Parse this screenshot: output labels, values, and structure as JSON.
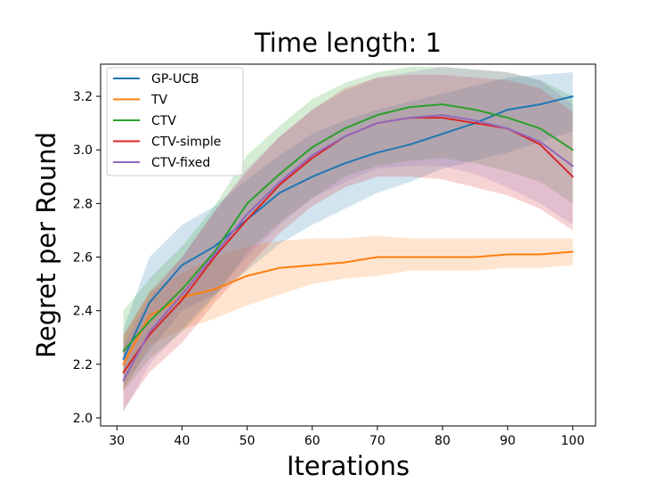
{
  "chart_data": {
    "type": "line",
    "title": "Time length: 1",
    "xlabel": "Iterations",
    "ylabel": "Regret per Round",
    "xlim": [
      27.5,
      103.5
    ],
    "ylim": [
      1.97,
      3.32
    ],
    "xticks": [
      30,
      40,
      50,
      60,
      70,
      80,
      90,
      100
    ],
    "yticks": [
      2.0,
      2.2,
      2.4,
      2.6,
      2.8,
      3.0,
      3.2
    ],
    "ytick_labels": [
      "2.0",
      "2.2",
      "2.4",
      "2.6",
      "2.8",
      "3.0",
      "3.2"
    ],
    "legend_position": "upper-left",
    "x": [
      31,
      35,
      40,
      45,
      50,
      55,
      60,
      65,
      70,
      75,
      80,
      85,
      90,
      95,
      100
    ],
    "series": [
      {
        "name": "GP-UCB",
        "color": "#1f77b4",
        "values": [
          2.22,
          2.43,
          2.57,
          2.64,
          2.74,
          2.84,
          2.9,
          2.95,
          2.99,
          3.02,
          3.06,
          3.1,
          3.15,
          3.17,
          3.2
        ],
        "lower": [
          2.12,
          2.25,
          2.4,
          2.46,
          2.55,
          2.65,
          2.72,
          2.78,
          2.84,
          2.88,
          2.93,
          2.96,
          2.99,
          3.03,
          3.07
        ],
        "upper": [
          2.33,
          2.6,
          2.72,
          2.79,
          2.89,
          2.98,
          3.06,
          3.11,
          3.15,
          3.18,
          3.21,
          3.24,
          3.27,
          3.28,
          3.29
        ]
      },
      {
        "name": "TV",
        "color": "#ff7f0e",
        "values": [
          2.2,
          2.38,
          2.45,
          2.48,
          2.53,
          2.56,
          2.57,
          2.58,
          2.6,
          2.6,
          2.6,
          2.6,
          2.61,
          2.61,
          2.62
        ],
        "lower": [
          2.1,
          2.27,
          2.33,
          2.37,
          2.42,
          2.46,
          2.5,
          2.52,
          2.53,
          2.55,
          2.55,
          2.55,
          2.56,
          2.56,
          2.57
        ],
        "upper": [
          2.3,
          2.47,
          2.54,
          2.6,
          2.64,
          2.66,
          2.67,
          2.67,
          2.68,
          2.67,
          2.67,
          2.67,
          2.67,
          2.67,
          2.67
        ]
      },
      {
        "name": "CTV",
        "color": "#2ca02c",
        "values": [
          2.25,
          2.36,
          2.48,
          2.62,
          2.8,
          2.91,
          3.01,
          3.08,
          3.13,
          3.16,
          3.17,
          3.15,
          3.12,
          3.08,
          3.0
        ],
        "lower": [
          2.1,
          2.22,
          2.32,
          2.45,
          2.62,
          2.73,
          2.82,
          2.9,
          2.94,
          2.96,
          2.97,
          2.95,
          2.92,
          2.88,
          2.8
        ],
        "upper": [
          2.4,
          2.52,
          2.64,
          2.79,
          2.98,
          3.09,
          3.19,
          3.25,
          3.29,
          3.31,
          3.31,
          3.3,
          3.29,
          3.26,
          3.2
        ]
      },
      {
        "name": "CTV-simple",
        "color": "#d62728",
        "values": [
          2.17,
          2.31,
          2.44,
          2.6,
          2.74,
          2.87,
          2.97,
          3.05,
          3.1,
          3.12,
          3.12,
          3.1,
          3.08,
          3.02,
          2.9
        ],
        "lower": [
          2.03,
          2.17,
          2.28,
          2.43,
          2.56,
          2.69,
          2.79,
          2.86,
          2.9,
          2.9,
          2.89,
          2.86,
          2.83,
          2.78,
          2.7
        ],
        "upper": [
          2.31,
          2.47,
          2.6,
          2.77,
          2.92,
          3.05,
          3.15,
          3.23,
          3.27,
          3.28,
          3.28,
          3.27,
          3.26,
          3.23,
          3.14
        ]
      },
      {
        "name": "CTV-fixed",
        "color": "#9467bd",
        "values": [
          2.14,
          2.32,
          2.46,
          2.61,
          2.76,
          2.88,
          2.98,
          3.05,
          3.1,
          3.12,
          3.13,
          3.11,
          3.08,
          3.03,
          2.94
        ],
        "lower": [
          2.02,
          2.2,
          2.33,
          2.46,
          2.6,
          2.72,
          2.82,
          2.88,
          2.93,
          2.94,
          2.94,
          2.91,
          2.86,
          2.8,
          2.72
        ],
        "upper": [
          2.27,
          2.45,
          2.6,
          2.77,
          2.93,
          3.05,
          3.15,
          3.22,
          3.27,
          3.29,
          3.31,
          3.3,
          3.29,
          3.26,
          3.17
        ]
      }
    ]
  }
}
